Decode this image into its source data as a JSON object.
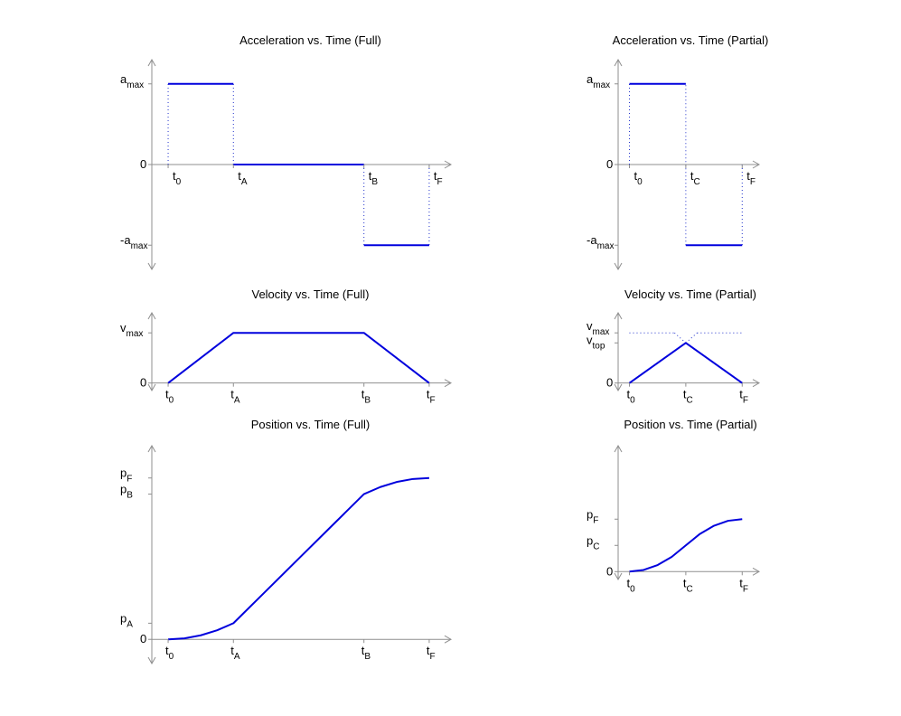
{
  "colors": {
    "curve": "#0000dd",
    "axis": "#8f8f8f",
    "dotted": "#2233cc"
  },
  "chart_data": [
    {
      "id": "acc-full",
      "type": "line",
      "title": "Acceleration vs. Time (Full)",
      "xlim": [
        0,
        5.5
      ],
      "ylim": [
        -1.3,
        1.3
      ],
      "xticks": [
        {
          "x": 0.3,
          "m": "t",
          "s": "0"
        },
        {
          "x": 1.5,
          "m": "t",
          "s": "A"
        },
        {
          "x": 3.9,
          "m": "t",
          "s": "B"
        },
        {
          "x": 5.1,
          "m": "t",
          "s": "F"
        }
      ],
      "yticks": [
        {
          "y": 1,
          "m": "a",
          "s": "max"
        },
        {
          "y": 0,
          "m": "0",
          "s": ""
        },
        {
          "y": -1,
          "m": "-a",
          "s": "max"
        }
      ],
      "xtick_label_pos": "right",
      "series": [
        {
          "x": [
            0.3,
            1.5
          ],
          "y": [
            1,
            1
          ]
        },
        {
          "x": [
            1.5,
            3.9
          ],
          "y": [
            0,
            0
          ]
        },
        {
          "x": [
            3.9,
            5.1
          ],
          "y": [
            -1,
            -1
          ]
        }
      ],
      "guides": [
        {
          "x": [
            0.3,
            0.3
          ],
          "y": [
            0,
            1
          ]
        },
        {
          "x": [
            1.5,
            1.5
          ],
          "y": [
            0,
            1
          ]
        },
        {
          "x": [
            3.9,
            3.9
          ],
          "y": [
            0,
            -1
          ]
        },
        {
          "x": [
            5.1,
            5.1
          ],
          "y": [
            0,
            -1
          ]
        }
      ]
    },
    {
      "id": "acc-part",
      "type": "line",
      "title": "Acceleration vs. Time (Partial)",
      "xlim": [
        0,
        2.5
      ],
      "ylim": [
        -1.3,
        1.3
      ],
      "xticks": [
        {
          "x": 0.2,
          "m": "t",
          "s": "0"
        },
        {
          "x": 1.2,
          "m": "t",
          "s": "C"
        },
        {
          "x": 2.2,
          "m": "t",
          "s": "F"
        }
      ],
      "yticks": [
        {
          "y": 1,
          "m": "a",
          "s": "max"
        },
        {
          "y": 0,
          "m": "0",
          "s": ""
        },
        {
          "y": -1,
          "m": "-a",
          "s": "max"
        }
      ],
      "xtick_label_pos": "right",
      "series": [
        {
          "x": [
            0.2,
            1.2
          ],
          "y": [
            1,
            1
          ]
        },
        {
          "x": [
            1.2,
            2.2
          ],
          "y": [
            -1,
            -1
          ]
        }
      ],
      "guides": [
        {
          "x": [
            0.2,
            0.2
          ],
          "y": [
            0,
            1
          ]
        },
        {
          "x": [
            1.2,
            1.2
          ],
          "y": [
            -1,
            1
          ]
        },
        {
          "x": [
            2.2,
            2.2
          ],
          "y": [
            0,
            -1
          ]
        }
      ]
    },
    {
      "id": "vel-full",
      "type": "line",
      "title": "Velocity vs. Time (Full)",
      "xlim": [
        0,
        5.5
      ],
      "ylim": [
        -0.15,
        1.4
      ],
      "xticks": [
        {
          "x": 0.3,
          "m": "t",
          "s": "0"
        },
        {
          "x": 1.5,
          "m": "t",
          "s": "A"
        },
        {
          "x": 3.9,
          "m": "t",
          "s": "B"
        },
        {
          "x": 5.1,
          "m": "t",
          "s": "F"
        }
      ],
      "yticks": [
        {
          "y": 1,
          "m": "v",
          "s": "max"
        },
        {
          "y": 0,
          "m": "0",
          "s": ""
        }
      ],
      "xtick_label_pos": "center",
      "series": [
        {
          "x": [
            0.3,
            1.5,
            3.9,
            5.1
          ],
          "y": [
            0,
            1,
            1,
            0
          ]
        }
      ],
      "guides": []
    },
    {
      "id": "vel-part",
      "type": "line",
      "title": "Velocity vs. Time (Partial)",
      "xlim": [
        0,
        2.5
      ],
      "ylim": [
        -0.15,
        1.4
      ],
      "xticks": [
        {
          "x": 0.2,
          "m": "t",
          "s": "0"
        },
        {
          "x": 1.2,
          "m": "t",
          "s": "C"
        },
        {
          "x": 2.2,
          "m": "t",
          "s": "F"
        }
      ],
      "yticks": [
        {
          "y": 1,
          "m": "v",
          "s": "max"
        },
        {
          "y": 0.8,
          "m": "v",
          "s": "top"
        },
        {
          "y": 0,
          "m": "0",
          "s": ""
        }
      ],
      "xtick_label_pos": "center",
      "series": [
        {
          "x": [
            0.2,
            1.2,
            2.2
          ],
          "y": [
            0,
            0.8,
            0
          ]
        }
      ],
      "guides": [
        {
          "x": [
            0.2,
            1.0
          ],
          "y": [
            1,
            1
          ]
        },
        {
          "x": [
            1.0,
            1.2
          ],
          "y": [
            1,
            0.8
          ]
        },
        {
          "x": [
            1.2,
            1.4
          ],
          "y": [
            0.8,
            1
          ]
        },
        {
          "x": [
            1.4,
            2.2
          ],
          "y": [
            1,
            1
          ]
        }
      ]
    },
    {
      "id": "pos-full",
      "type": "line",
      "title": "Position vs. Time (Full)",
      "xlim": [
        0,
        5.5
      ],
      "ylim": [
        -0.15,
        1.2
      ],
      "xticks": [
        {
          "x": 0.3,
          "m": "t",
          "s": "0"
        },
        {
          "x": 1.5,
          "m": "t",
          "s": "A"
        },
        {
          "x": 3.9,
          "m": "t",
          "s": "B"
        },
        {
          "x": 5.1,
          "m": "t",
          "s": "F"
        }
      ],
      "yticks": [
        {
          "y": 1,
          "m": "p",
          "s": "F"
        },
        {
          "y": 0.9,
          "m": "p",
          "s": "B"
        },
        {
          "y": 0.1,
          "m": "p",
          "s": "A"
        },
        {
          "y": 0,
          "m": "0",
          "s": ""
        }
      ],
      "xtick_label_pos": "center",
      "series": [
        {
          "x": [
            0.3,
            0.6,
            0.9,
            1.2,
            1.5,
            2.1,
            2.7,
            3.3,
            3.9,
            4.2,
            4.5,
            4.8,
            5.1
          ],
          "y": [
            0,
            0.00625,
            0.025,
            0.05625,
            0.1,
            0.3,
            0.5,
            0.7,
            0.9,
            0.94375,
            0.975,
            0.99375,
            1
          ]
        }
      ],
      "guides": []
    },
    {
      "id": "pos-part",
      "type": "line",
      "title": "Position vs. Time (Partial)",
      "xlim": [
        0,
        2.5
      ],
      "ylim": [
        -0.15,
        2.4
      ],
      "xticks": [
        {
          "x": 0.2,
          "m": "t",
          "s": "0"
        },
        {
          "x": 1.2,
          "m": "t",
          "s": "C"
        },
        {
          "x": 2.2,
          "m": "t",
          "s": "F"
        }
      ],
      "yticks": [
        {
          "y": 1,
          "m": "p",
          "s": "F"
        },
        {
          "y": 0.5,
          "m": "p",
          "s": "C"
        },
        {
          "y": 0,
          "m": "0",
          "s": ""
        }
      ],
      "xtick_label_pos": "center",
      "series": [
        {
          "x": [
            0.2,
            0.45,
            0.7,
            0.95,
            1.2,
            1.45,
            1.7,
            1.95,
            2.2
          ],
          "y": [
            0,
            0.03125,
            0.125,
            0.28125,
            0.5,
            0.71875,
            0.875,
            0.96875,
            1
          ]
        }
      ],
      "guides": []
    }
  ]
}
